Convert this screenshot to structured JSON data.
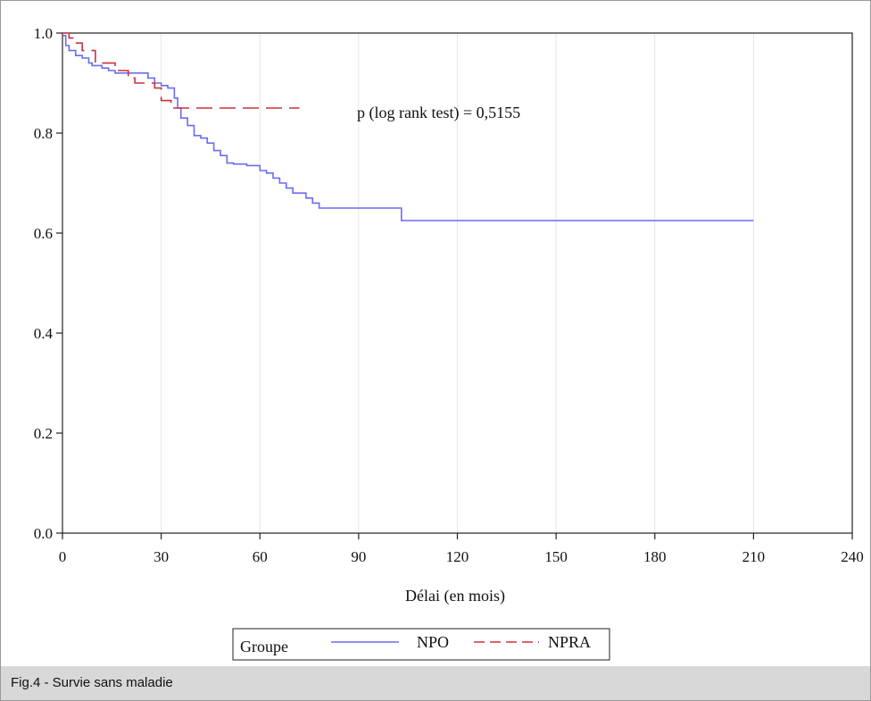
{
  "chart_data": {
    "type": "line",
    "xlabel": "Délai (en mois)",
    "ylabel": "",
    "xlim": [
      0,
      240
    ],
    "ylim": [
      0,
      1
    ],
    "xticks": [
      0,
      30,
      60,
      90,
      120,
      150,
      180,
      210,
      240
    ],
    "yticks": [
      "0.0",
      "0.2",
      "0.4",
      "0.6",
      "0.8",
      "1.0"
    ],
    "grid": "vertical",
    "annotation": "p (log rank test) = 0,5155",
    "legend": {
      "title": "Groupe",
      "position": "bottom"
    },
    "series": [
      {
        "name": "NPO",
        "style": "solid",
        "color": "#6a6cf0",
        "x": [
          0,
          1,
          2,
          4,
          6,
          8,
          9,
          12,
          14,
          16,
          18,
          20,
          26,
          28,
          30,
          32,
          34,
          35,
          36,
          38,
          40,
          42,
          44,
          46,
          48,
          50,
          52,
          56,
          60,
          62,
          64,
          66,
          68,
          70,
          74,
          76,
          78,
          80,
          103,
          210
        ],
        "y": [
          0.995,
          0.975,
          0.965,
          0.955,
          0.95,
          0.94,
          0.935,
          0.93,
          0.925,
          0.92,
          0.92,
          0.92,
          0.91,
          0.9,
          0.895,
          0.89,
          0.87,
          0.85,
          0.83,
          0.815,
          0.795,
          0.79,
          0.78,
          0.765,
          0.755,
          0.74,
          0.738,
          0.735,
          0.725,
          0.72,
          0.71,
          0.7,
          0.69,
          0.68,
          0.67,
          0.66,
          0.65,
          0.65,
          0.625,
          0.625
        ]
      },
      {
        "name": "NPRA",
        "style": "dashed",
        "color": "#c8323a",
        "x": [
          0,
          2,
          4,
          6,
          10,
          16,
          20,
          22,
          28,
          30,
          33,
          36,
          72
        ],
        "y": [
          1.0,
          0.99,
          0.98,
          0.965,
          0.94,
          0.925,
          0.91,
          0.9,
          0.89,
          0.865,
          0.85,
          0.85,
          0.85
        ]
      }
    ]
  },
  "caption": "Fig.4 - Survie sans maladie"
}
